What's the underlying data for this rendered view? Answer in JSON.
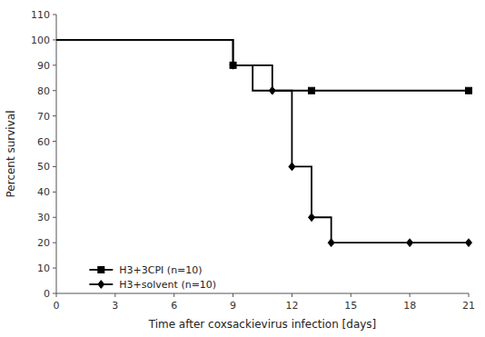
{
  "chart_data": {
    "type": "line",
    "title": "",
    "x_label": "Time after coxsackievirus infection [days]",
    "y_label": "Percent survival",
    "xlim": [
      0,
      21
    ],
    "ylim": [
      0,
      110
    ],
    "xticks": [
      0,
      3,
      6,
      9,
      12,
      15,
      18,
      21
    ],
    "yticks": [
      0,
      10,
      20,
      30,
      40,
      50,
      60,
      70,
      80,
      90,
      100,
      110
    ],
    "grid": false,
    "legend": "lower left",
    "series": [
      {
        "name": "H3+3CPI (n=10)",
        "color": "#000000",
        "marker": "square",
        "x": [
          0,
          9,
          9,
          10,
          10,
          13,
          13,
          21
        ],
        "values": [
          100,
          100,
          90,
          90,
          80,
          80,
          80,
          80
        ],
        "marker_x": [
          9,
          13,
          21
        ],
        "marker_values": [
          90,
          80,
          80
        ]
      },
      {
        "name": "H3+solvent (n=10)",
        "color": "#000000",
        "marker": "diamond",
        "x": [
          0,
          9,
          9,
          11,
          11,
          12,
          12,
          13,
          13,
          14,
          14,
          18,
          18,
          21
        ],
        "values": [
          100,
          100,
          90,
          90,
          80,
          80,
          50,
          50,
          30,
          30,
          20,
          20,
          20,
          20
        ],
        "marker_x": [
          9,
          11,
          12,
          13,
          14,
          18,
          21
        ],
        "marker_values": [
          90,
          80,
          50,
          30,
          20,
          20,
          20
        ]
      }
    ]
  }
}
